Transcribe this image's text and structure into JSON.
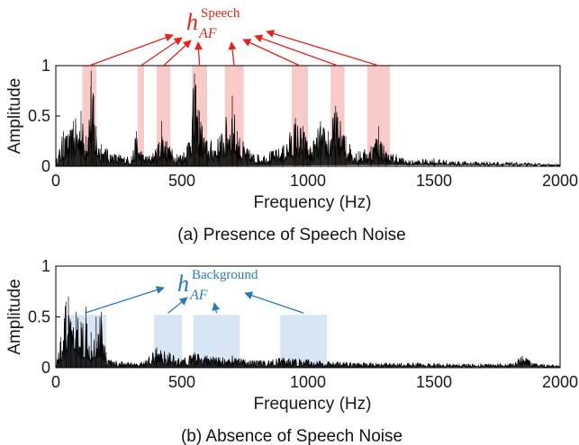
{
  "colors": {
    "spectrum": "#000000",
    "speech_highlight": "#f4a6a6",
    "speech_annotation": "#e8211b",
    "background_highlight": "#bcd4ec",
    "background_annotation": "#2a7ab8"
  },
  "chart_data": [
    {
      "type": "area",
      "panel": "a",
      "caption": "(a) Presence of Speech Noise",
      "xlabel": "Frequency (Hz)",
      "ylabel": "Amplitude",
      "xlim": [
        0,
        2000
      ],
      "ylim": [
        0,
        1
      ],
      "xticks": [
        "0",
        "500",
        "1000",
        "1500",
        "2000"
      ],
      "yticks": [
        "0",
        "0.5",
        "1"
      ],
      "grid": false,
      "series": [
        {
          "x": [
            0,
            30,
            50,
            70,
            100,
            120,
            140,
            150,
            160,
            180,
            200,
            250,
            300,
            320,
            340,
            360,
            400,
            420,
            440,
            480,
            520,
            550,
            570,
            600,
            650,
            700,
            720,
            760,
            800,
            850,
            900,
            950,
            980,
            1010,
            1050,
            1080,
            1110,
            1150,
            1200,
            1250,
            1280,
            1310,
            1350,
            1400,
            1500,
            1600,
            1700,
            1800,
            1900,
            2000
          ],
          "y": [
            0.05,
            0.35,
            0.32,
            0.45,
            0.55,
            0.3,
            0.95,
            0.7,
            0.4,
            0.22,
            0.18,
            0.12,
            0.1,
            0.35,
            0.15,
            0.1,
            0.18,
            0.45,
            0.25,
            0.12,
            0.2,
            0.92,
            0.55,
            0.25,
            0.3,
            0.7,
            0.35,
            0.18,
            0.12,
            0.15,
            0.2,
            0.48,
            0.4,
            0.2,
            0.45,
            0.35,
            0.6,
            0.3,
            0.15,
            0.2,
            0.4,
            0.15,
            0.12,
            0.06,
            0.08,
            0.05,
            0.05,
            0.04,
            0.03,
            0.02
          ]
        }
      ],
      "highlight_bands": [
        [
          105,
          160
        ],
        [
          325,
          350
        ],
        [
          400,
          455
        ],
        [
          540,
          600
        ],
        [
          670,
          745
        ],
        [
          935,
          1000
        ],
        [
          1090,
          1145
        ],
        [
          1235,
          1325
        ]
      ],
      "annotation": {
        "symbol": "h",
        "superscript": "Speech",
        "subscript": "AF"
      }
    },
    {
      "type": "area",
      "panel": "b",
      "caption": "(b) Absence of Speech Noise",
      "xlabel": "Frequency (Hz)",
      "ylabel": "Amplitude",
      "xlim": [
        0,
        2000
      ],
      "ylim": [
        0,
        1
      ],
      "xticks": [
        "0",
        "500",
        "1000",
        "1500",
        "2000"
      ],
      "yticks": [
        "0",
        "0.5",
        "1"
      ],
      "grid": false,
      "series": [
        {
          "x": [
            0,
            20,
            40,
            50,
            60,
            80,
            100,
            120,
            140,
            160,
            180,
            200,
            220,
            260,
            300,
            350,
            400,
            450,
            500,
            550,
            600,
            650,
            700,
            750,
            800,
            900,
            1000,
            1100,
            1200,
            1400,
            1600,
            1800,
            1850,
            1900,
            2000
          ],
          "y": [
            0.05,
            0.3,
            0.65,
            0.7,
            0.45,
            0.55,
            0.45,
            0.6,
            0.35,
            0.5,
            0.55,
            0.15,
            0.08,
            0.06,
            0.05,
            0.06,
            0.2,
            0.15,
            0.08,
            0.15,
            0.12,
            0.1,
            0.12,
            0.08,
            0.07,
            0.1,
            0.08,
            0.06,
            0.05,
            0.05,
            0.04,
            0.04,
            0.12,
            0.04,
            0.03
          ]
        }
      ],
      "highlight_bands": [
        [
          30,
          200
        ],
        [
          390,
          500
        ],
        [
          545,
          730
        ],
        [
          890,
          1075
        ]
      ],
      "annotation": {
        "symbol": "h",
        "superscript": "Background",
        "subscript": "AF"
      }
    }
  ]
}
